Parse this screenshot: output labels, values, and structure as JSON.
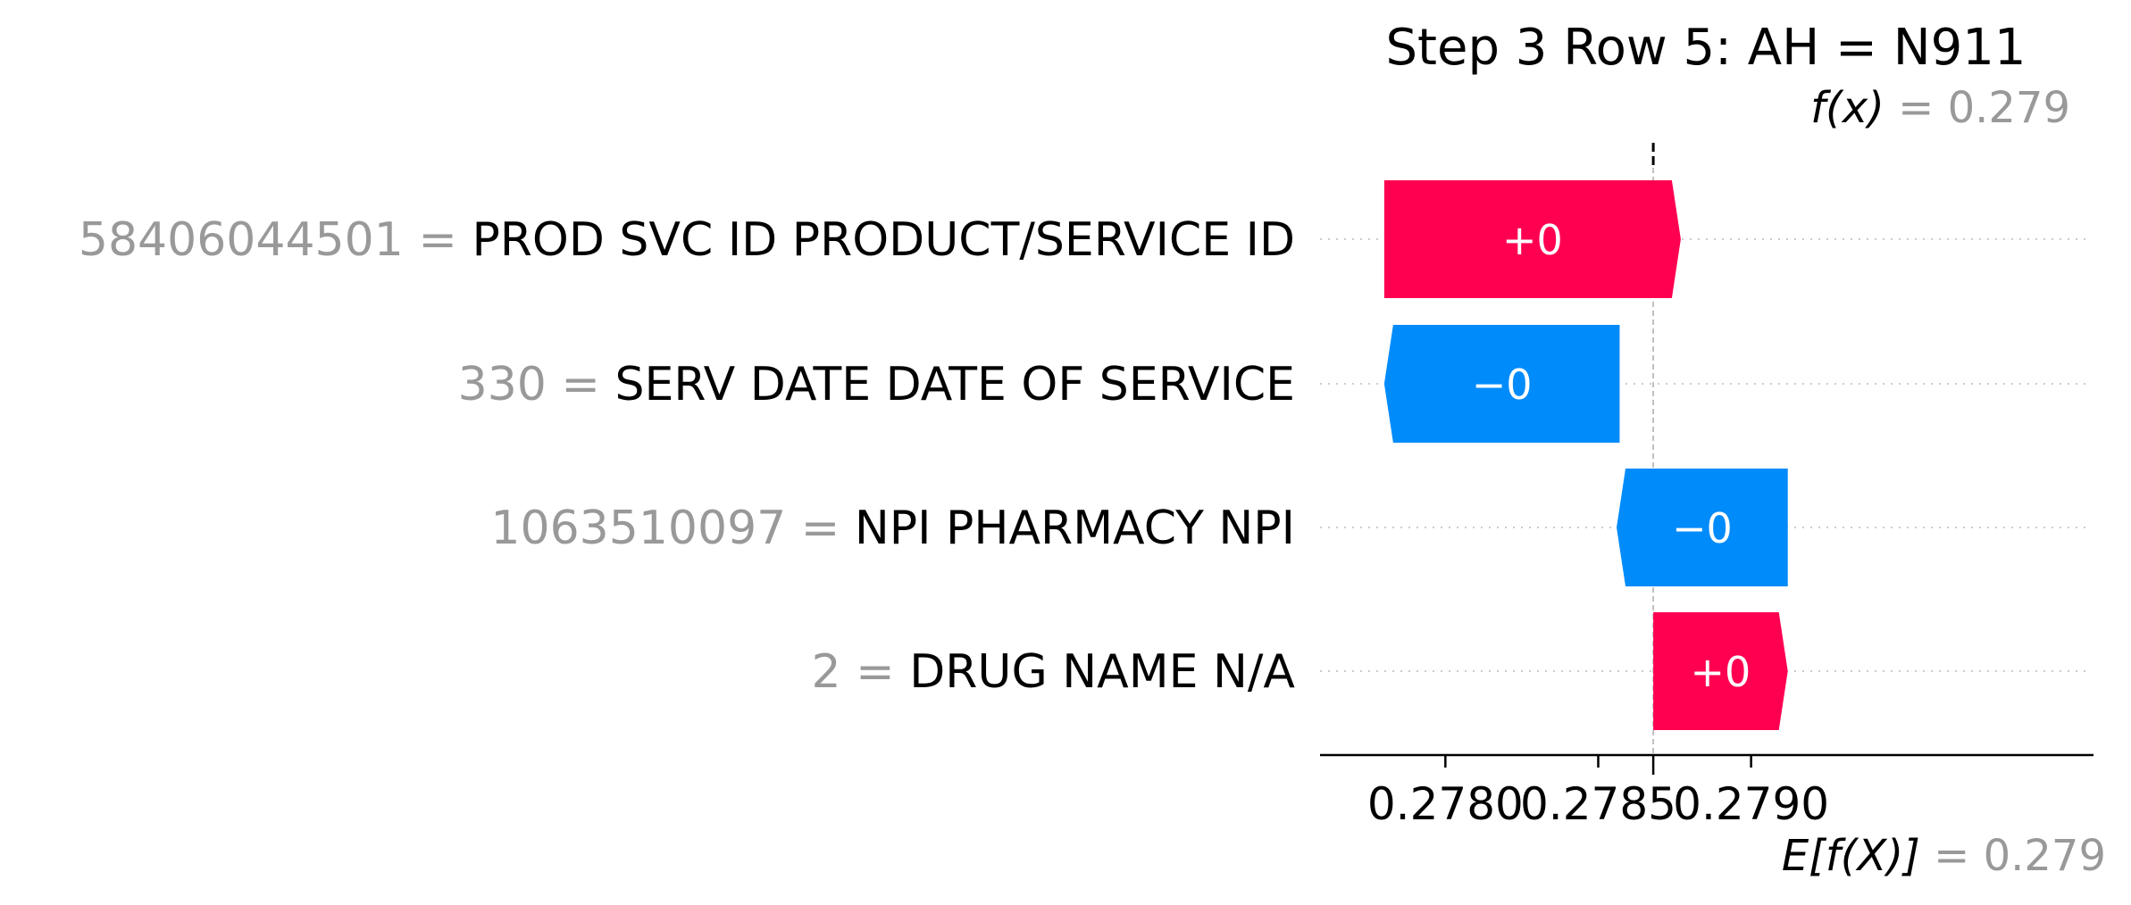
{
  "chart_data": {
    "type": "waterfall",
    "title": "Step 3 Row 5: AH = N911",
    "fx": {
      "label": "f(x)",
      "equals": " = ",
      "value_text": "0.279",
      "value": 0.27868
    },
    "efx": {
      "label": "E[f(X)]",
      "equals": " = ",
      "value_text": "0.279",
      "value": 0.27868
    },
    "xlim": [
      0.27759,
      0.28012
    ],
    "xticks": [
      {
        "value": 0.278,
        "label": "0.2780"
      },
      {
        "value": 0.2785,
        "label": "0.2785"
      },
      {
        "value": 0.279,
        "label": "0.2790"
      }
    ],
    "features": [
      {
        "value": "58406044501",
        "equals": " = ",
        "name": "PROD SVC ID PRODUCT/SERVICE ID",
        "bar_label": "+0",
        "start": 0.2778,
        "end": 0.27877,
        "direction": "positive"
      },
      {
        "value": "330",
        "equals": " = ",
        "name": "SERV DATE DATE OF SERVICE",
        "bar_label": "−0",
        "start": 0.27857,
        "end": 0.2778,
        "direction": "negative"
      },
      {
        "value": "1063510097",
        "equals": " = ",
        "name": "NPI PHARMACY NPI",
        "bar_label": "−0",
        "start": 0.27912,
        "end": 0.27856,
        "direction": "negative"
      },
      {
        "value": "2",
        "equals": " = ",
        "name": "DRUG NAME N/A",
        "bar_label": "+0",
        "start": 0.27868,
        "end": 0.27912,
        "direction": "positive"
      }
    ],
    "colors": {
      "positive": "#ff0051",
      "negative": "#008bfb"
    }
  }
}
